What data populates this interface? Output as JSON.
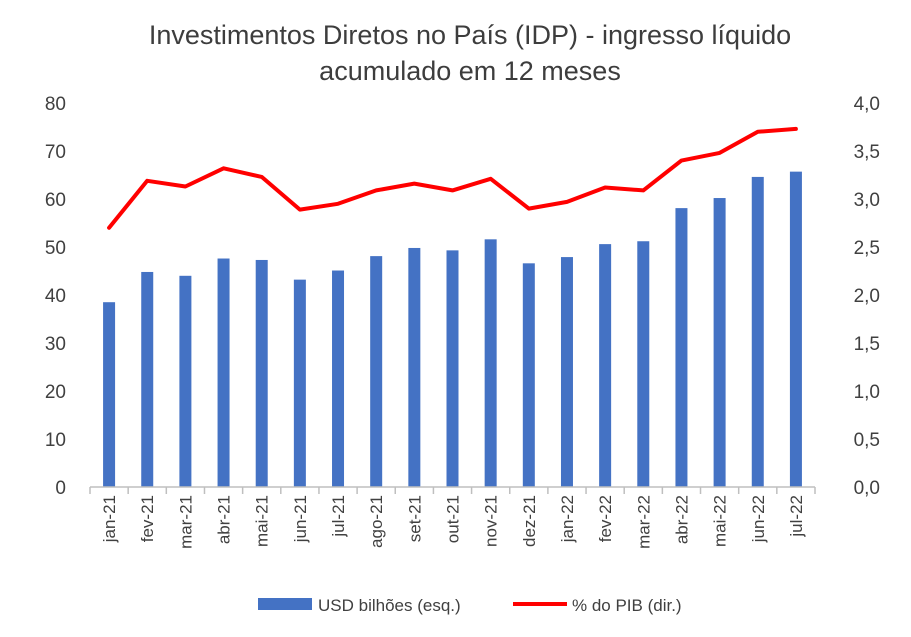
{
  "chart_data": {
    "type": "bar",
    "title_lines": [
      "Investimentos Diretos no País (IDP) - ingresso líquido",
      "acumulado em 12 meses"
    ],
    "categories": [
      "jan-21",
      "fev-21",
      "mar-21",
      "abr-21",
      "mai-21",
      "jun-21",
      "jul-21",
      "ago-21",
      "set-21",
      "out-21",
      "nov-21",
      "dez-21",
      "jan-22",
      "fev-22",
      "mar-22",
      "abr-22",
      "mai-22",
      "jun-22",
      "jul-22"
    ],
    "series": [
      {
        "name": "USD bilhões (esq.)",
        "type": "bar",
        "axis": "left",
        "color": "#4472c4",
        "values": [
          38.5,
          44.8,
          44.0,
          47.6,
          47.3,
          43.2,
          45.1,
          48.1,
          49.8,
          49.3,
          51.6,
          46.6,
          47.9,
          50.6,
          51.2,
          58.1,
          60.2,
          64.6,
          65.7
        ]
      },
      {
        "name": "% do PIB (dir.)",
        "type": "line",
        "axis": "right",
        "color": "#ff0000",
        "values": [
          2.7,
          3.19,
          3.13,
          3.32,
          3.23,
          2.89,
          2.95,
          3.09,
          3.16,
          3.09,
          3.21,
          2.9,
          2.97,
          3.12,
          3.09,
          3.4,
          3.48,
          3.7,
          3.73
        ]
      }
    ],
    "y_left": {
      "min": 0,
      "max": 80,
      "ticks": [
        0,
        10,
        20,
        30,
        40,
        50,
        60,
        70,
        80
      ],
      "tick_labels": [
        "0",
        "10",
        "20",
        "30",
        "40",
        "50",
        "60",
        "70",
        "80"
      ]
    },
    "y_right": {
      "min": 0,
      "max": 4,
      "ticks": [
        0,
        0.5,
        1,
        1.5,
        2,
        2.5,
        3,
        3.5,
        4
      ],
      "tick_labels": [
        "0,0",
        "0,5",
        "1,0",
        "1,5",
        "2,0",
        "2,5",
        "3,0",
        "3,5",
        "4,0"
      ]
    },
    "grid": false,
    "legend_position": "bottom"
  }
}
